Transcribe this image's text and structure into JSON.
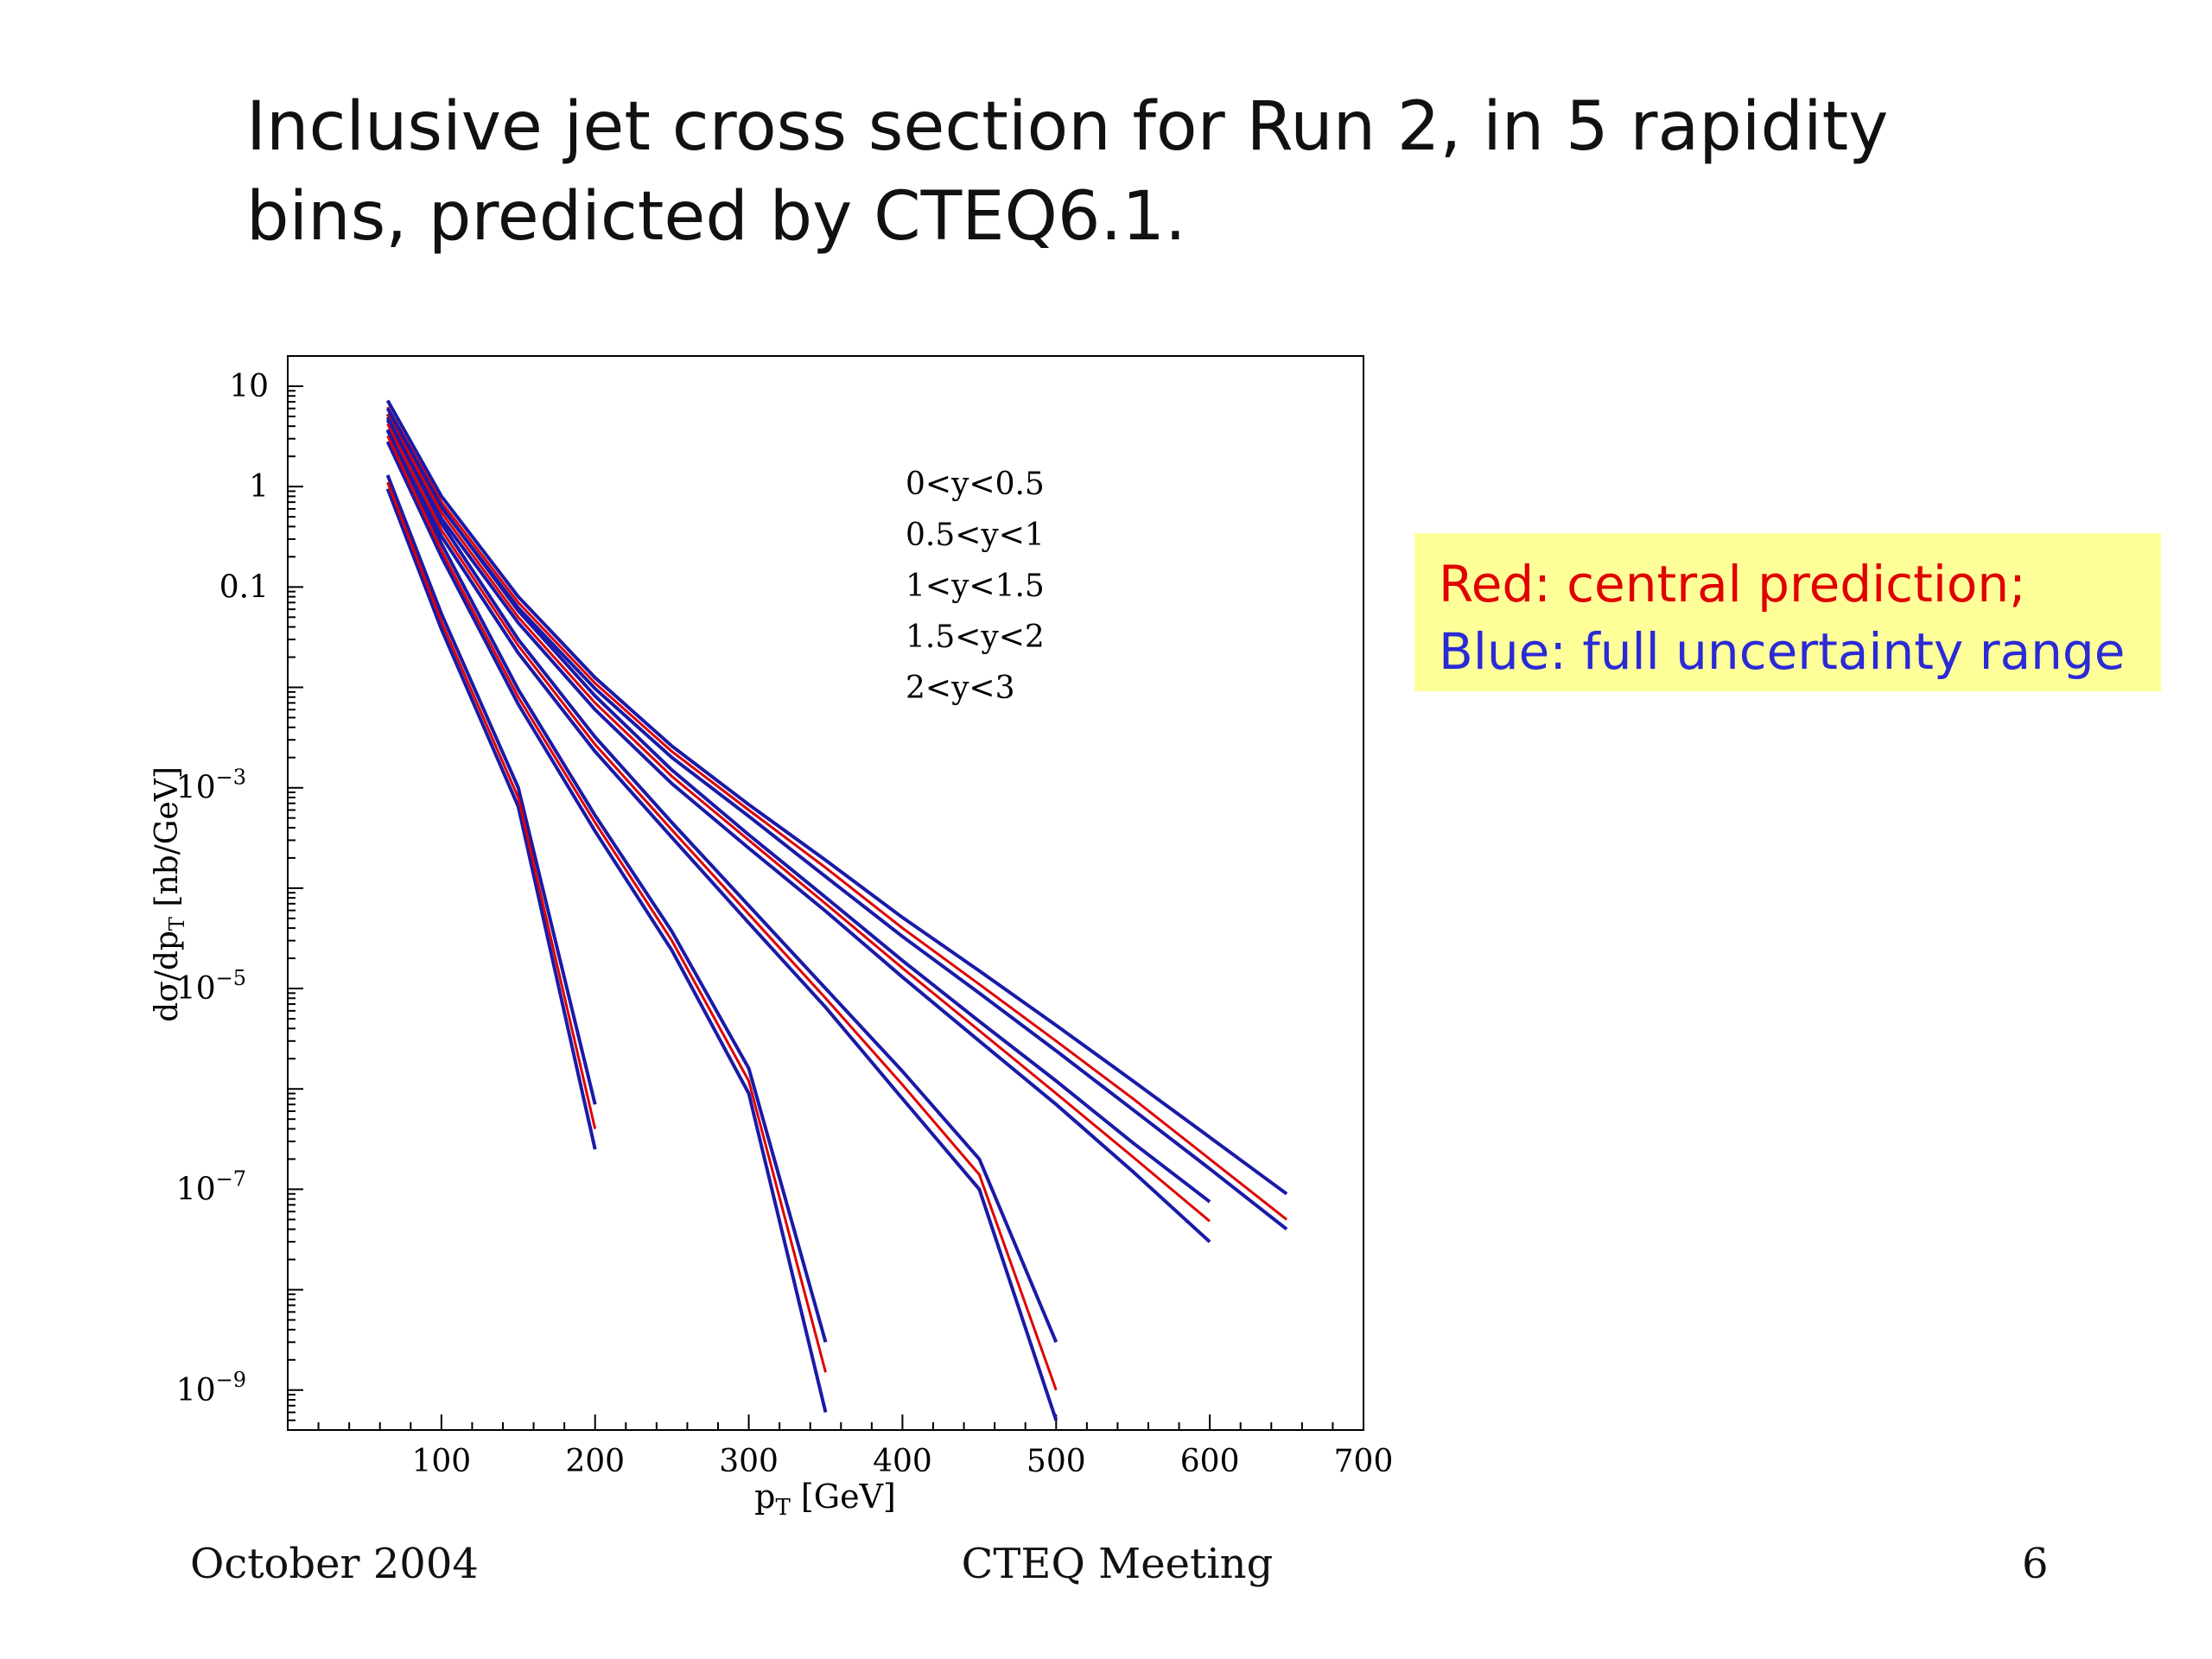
{
  "slide": {
    "title_line1": "Inclusive jet cross section for Run 2, in 5 rapidity",
    "title_line2": "bins, predicted by CTEQ6.1.",
    "callout_red": "Red: central prediction;",
    "callout_blue": "Blue: full uncertainty range",
    "footer_left": "October 2004",
    "footer_center": "CTEQ Meeting",
    "footer_right": "6"
  },
  "colors": {
    "central": "#e00000",
    "uncertainty": "#1a1aa8",
    "callout_bg": "#ffff99"
  },
  "chart_data": {
    "type": "line",
    "title": "",
    "xlabel": "p_T [GeV]",
    "ylabel": "dσ/dp_T [nb/GeV]",
    "xlim": [
      0,
      700
    ],
    "ylim": [
      4e-10,
      20
    ],
    "yscale": "log",
    "x_ticks": [
      100,
      200,
      300,
      400,
      500,
      600,
      700
    ],
    "y_ticks": [
      {
        "value": 10,
        "label": "10"
      },
      {
        "value": 1,
        "label": "1"
      },
      {
        "value": 0.1,
        "label": "0.1"
      },
      {
        "value": 0.001,
        "label": "10",
        "exp": "−3"
      },
      {
        "value": 1e-05,
        "label": "10",
        "exp": "−5"
      },
      {
        "value": 1e-07,
        "label": "10",
        "exp": "−7"
      },
      {
        "value": 1e-09,
        "label": "10",
        "exp": "−9"
      }
    ],
    "legend_placement": "top-center",
    "grid": false,
    "series": [
      {
        "name": "0<y<0.5",
        "x": [
          65,
          100,
          150,
          200,
          250,
          300,
          350,
          400,
          450,
          500,
          550,
          600,
          650
        ],
        "central": [
          6.2,
          0.7,
          0.07,
          0.011,
          0.0023,
          0.0006,
          0.00016,
          4e-05,
          1.1e-05,
          3e-06,
          8e-07,
          2e-07,
          5e-08
        ],
        "upper": [
          7.2,
          0.8,
          0.08,
          0.0125,
          0.0026,
          0.00068,
          0.00019,
          5.1e-05,
          1.5e-05,
          4.3e-06,
          1.2e-06,
          3.3e-07,
          9e-08
        ],
        "lower": [
          5.3,
          0.62,
          0.062,
          0.0097,
          0.002,
          0.00052,
          0.00013,
          3.3e-05,
          9e-06,
          2.4e-06,
          6.2e-07,
          1.6e-07,
          4e-08
        ]
      },
      {
        "name": "0.5<y<1",
        "x": [
          65,
          100,
          150,
          200,
          250,
          300,
          350,
          400,
          450,
          500,
          550,
          600
        ],
        "central": [
          5.2,
          0.55,
          0.05,
          0.007,
          0.0013,
          0.0003,
          7e-05,
          1.6e-05,
          3.8e-06,
          9e-07,
          2.1e-07,
          4.8e-08
        ],
        "upper": [
          6.0,
          0.63,
          0.058,
          0.0082,
          0.0015,
          0.00034,
          8.1e-05,
          1.9e-05,
          4.7e-06,
          1.2e-06,
          2.9e-07,
          7.5e-08
        ],
        "lower": [
          4.6,
          0.48,
          0.044,
          0.006,
          0.0011,
          0.00025,
          5.9e-05,
          1.3e-05,
          3e-06,
          7e-07,
          1.5e-07,
          3e-08
        ]
      },
      {
        "name": "1<y<1.5",
        "x": [
          65,
          100,
          150,
          200,
          250,
          300,
          350,
          400,
          450,
          500
        ],
        "central": [
          4.2,
          0.37,
          0.026,
          0.0027,
          0.00038,
          5.5e-05,
          8e-06,
          1.1e-06,
          1.4e-07,
          1e-09
        ],
        "upper": [
          4.9,
          0.43,
          0.03,
          0.0032,
          0.00045,
          6.7e-05,
          1e-05,
          1.5e-06,
          2e-07,
          3e-09
        ],
        "lower": [
          3.6,
          0.32,
          0.022,
          0.0023,
          0.00032,
          4.5e-05,
          6.5e-06,
          8e-07,
          1e-07,
          5e-10
        ]
      },
      {
        "name": "1.5<y<2",
        "x": [
          65,
          100,
          150,
          200,
          250,
          300,
          350
        ],
        "central": [
          3.2,
          0.23,
          0.008,
          0.00045,
          3e-05,
          1.2e-06,
          1.5e-09
        ],
        "upper": [
          3.7,
          0.27,
          0.0095,
          0.00053,
          3.7e-05,
          1.6e-06,
          3e-09
        ],
        "lower": [
          2.8,
          0.2,
          0.0068,
          0.00037,
          2.4e-05,
          9e-07,
          6e-10
        ]
      },
      {
        "name": "2<y<3",
        "x": [
          65,
          100,
          150,
          200
        ],
        "central": [
          1.1,
          0.045,
          0.0008,
          4e-07
        ],
        "upper": [
          1.3,
          0.054,
          0.001,
          7e-07
        ],
        "lower": [
          0.95,
          0.038,
          0.00065,
          2.5e-07
        ]
      }
    ]
  }
}
